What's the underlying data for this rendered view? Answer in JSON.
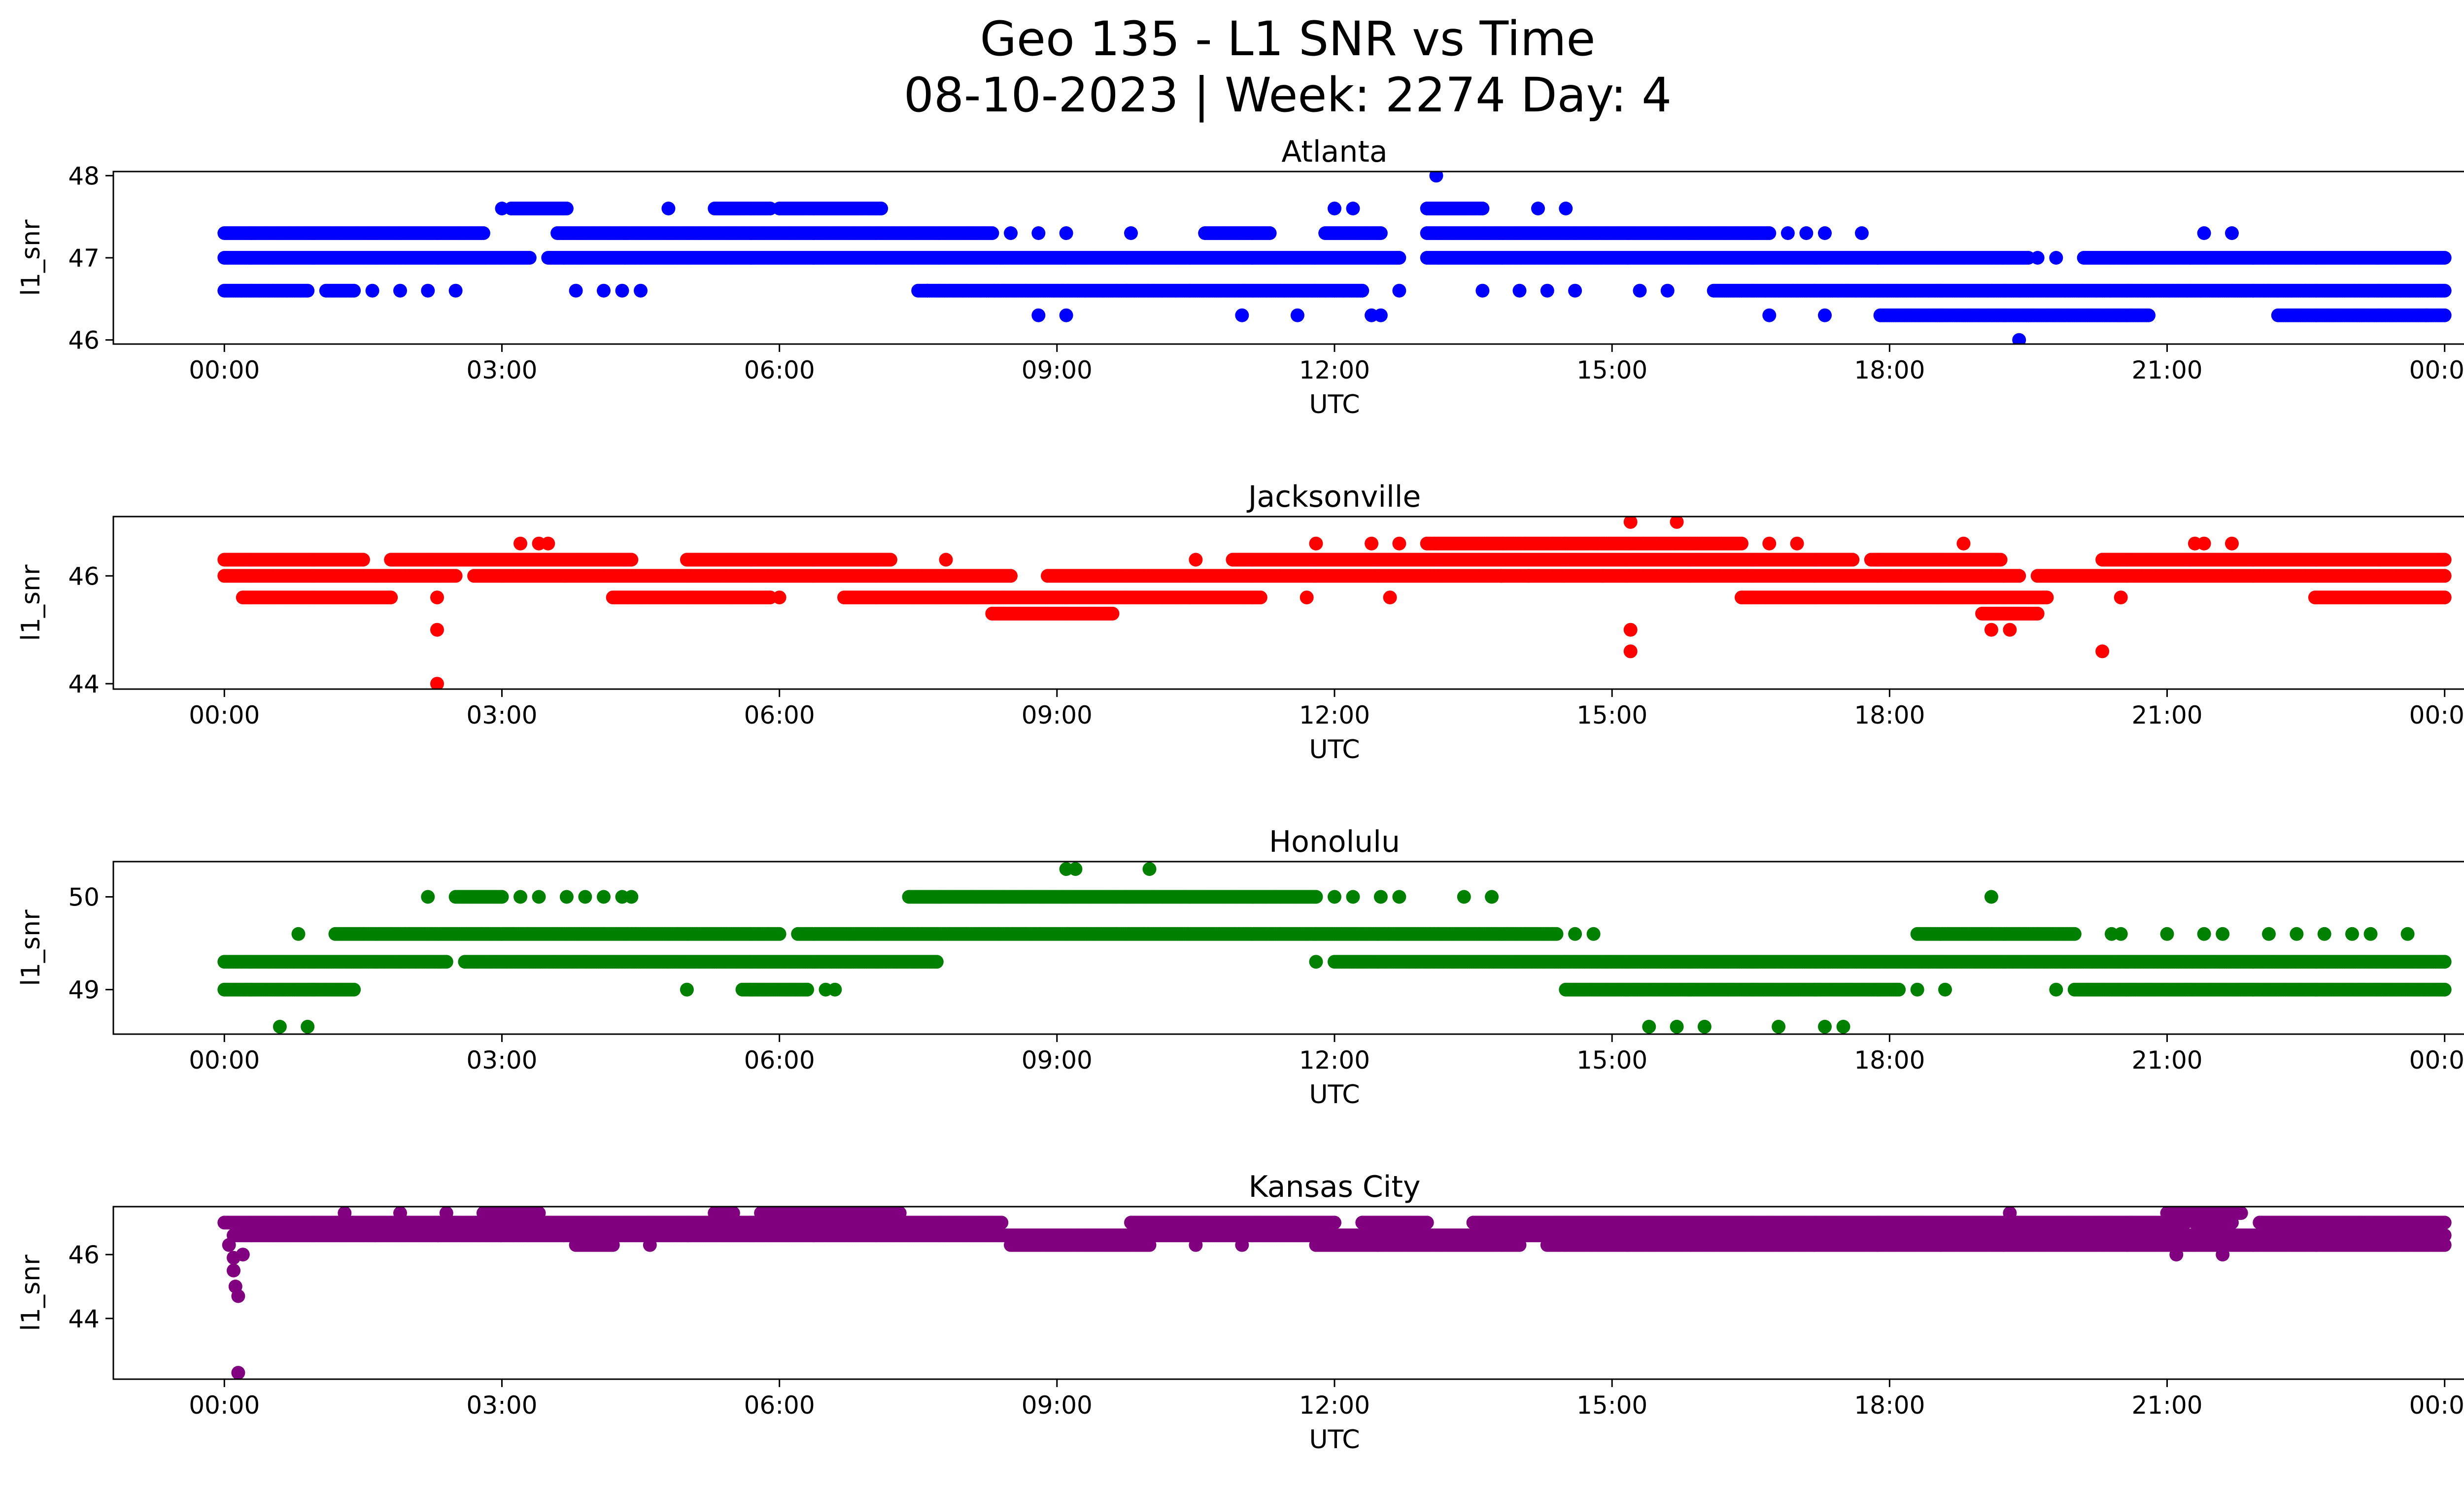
{
  "title_line1": "Geo 135 - L1 SNR vs Time",
  "title_line2": "08-10-2023 | Week: 2274 Day: 4",
  "chart_data": [
    {
      "type": "scatter",
      "title": "Atlanta",
      "xlabel": "UTC",
      "ylabel": "l1_snr",
      "color": "#0000ff",
      "xlim": [
        -1.2,
        25.2
      ],
      "ylim": [
        45.95,
        48.05
      ],
      "yticks": [
        46,
        47,
        48
      ],
      "xticks": [
        "00:00",
        "03:00",
        "06:00",
        "09:00",
        "12:00",
        "15:00",
        "18:00",
        "21:00",
        "00:00"
      ],
      "levels": [
        {
          "y": 47.3,
          "ranges": [
            [
              0.0,
              2.8
            ],
            [
              3.6,
              8.3
            ],
            [
              10.6,
              11.3
            ],
            [
              11.9,
              12.5
            ],
            [
              13.0,
              16.7
            ]
          ]
        },
        {
          "y": 47.0,
          "ranges": [
            [
              0.0,
              3.3
            ],
            [
              3.5,
              12.7
            ],
            [
              13.0,
              19.5
            ],
            [
              20.1,
              24.0
            ]
          ]
        },
        {
          "y": 46.6,
          "ranges": [
            [
              0.0,
              0.9
            ],
            [
              1.1,
              1.4
            ],
            [
              7.5,
              12.3
            ],
            [
              16.1,
              24.0
            ]
          ]
        },
        {
          "y": 46.3,
          "ranges": [
            [
              17.9,
              20.8
            ],
            [
              22.2,
              24.0
            ]
          ]
        },
        {
          "y": 47.6,
          "ranges": [
            [
              3.1,
              3.7
            ],
            [
              5.3,
              5.9
            ],
            [
              6.0,
              7.1
            ],
            [
              13.0,
              13.6
            ]
          ]
        }
      ],
      "points": [
        [
          0.3,
          47.3
        ],
        [
          3.0,
          47.6
        ],
        [
          4.8,
          47.6
        ],
        [
          8.5,
          47.3
        ],
        [
          8.8,
          47.3
        ],
        [
          9.1,
          47.3
        ],
        [
          9.8,
          47.3
        ],
        [
          12.0,
          47.6
        ],
        [
          12.2,
          47.6
        ],
        [
          14.2,
          47.6
        ],
        [
          14.5,
          47.6
        ],
        [
          16.9,
          47.3
        ],
        [
          17.1,
          47.3
        ],
        [
          17.3,
          47.3
        ],
        [
          17.7,
          47.3
        ],
        [
          19.6,
          47.0
        ],
        [
          19.8,
          47.0
        ],
        [
          1.6,
          46.6
        ],
        [
          1.9,
          46.6
        ],
        [
          2.2,
          46.6
        ],
        [
          2.5,
          46.6
        ],
        [
          3.8,
          46.6
        ],
        [
          4.1,
          46.6
        ],
        [
          4.3,
          46.6
        ],
        [
          4.5,
          46.6
        ],
        [
          7.6,
          46.6
        ],
        [
          12.7,
          46.6
        ],
        [
          13.6,
          46.6
        ],
        [
          14.0,
          46.6
        ],
        [
          14.3,
          46.6
        ],
        [
          14.6,
          46.6
        ],
        [
          15.3,
          46.6
        ],
        [
          15.6,
          46.6
        ],
        [
          16.7,
          46.3
        ],
        [
          17.3,
          46.3
        ],
        [
          8.8,
          46.3
        ],
        [
          9.1,
          46.3
        ],
        [
          11.0,
          46.3
        ],
        [
          11.6,
          46.3
        ],
        [
          12.4,
          46.3
        ],
        [
          12.5,
          46.3
        ],
        [
          23.8,
          46.3
        ],
        [
          21.4,
          47.3
        ],
        [
          21.7,
          47.3
        ],
        [
          13.1,
          48.0
        ],
        [
          19.4,
          46.0
        ]
      ]
    },
    {
      "type": "scatter",
      "title": "Jacksonville",
      "xlabel": "UTC",
      "ylabel": "l1_snr",
      "color": "#ff0000",
      "xlim": [
        -1.2,
        25.2
      ],
      "ylim": [
        43.9,
        47.1
      ],
      "yticks": [
        44,
        46
      ],
      "xticks": [
        "00:00",
        "03:00",
        "06:00",
        "09:00",
        "12:00",
        "15:00",
        "18:00",
        "21:00",
        "00:00"
      ],
      "levels": [
        {
          "y": 46.3,
          "ranges": [
            [
              0.0,
              1.5
            ],
            [
              1.8,
              4.4
            ],
            [
              5.0,
              7.2
            ],
            [
              10.9,
              17.6
            ],
            [
              17.8,
              19.2
            ],
            [
              20.3,
              24.0
            ]
          ]
        },
        {
          "y": 46.0,
          "ranges": [
            [
              0.0,
              2.5
            ],
            [
              2.7,
              8.5
            ],
            [
              8.9,
              19.4
            ],
            [
              19.6,
              24.0
            ]
          ]
        },
        {
          "y": 45.6,
          "ranges": [
            [
              0.2,
              1.8
            ],
            [
              4.2,
              5.9
            ],
            [
              6.7,
              11.2
            ],
            [
              16.4,
              19.7
            ],
            [
              22.6,
              24.0
            ]
          ]
        },
        {
          "y": 45.3,
          "ranges": [
            [
              8.3,
              9.6
            ],
            [
              19.0,
              19.6
            ]
          ]
        },
        {
          "y": 46.6,
          "ranges": [
            [
              13.0,
              16.4
            ]
          ]
        }
      ],
      "points": [
        [
          3.2,
          46.6
        ],
        [
          3.4,
          46.6
        ],
        [
          3.5,
          46.6
        ],
        [
          11.8,
          46.6
        ],
        [
          12.4,
          46.6
        ],
        [
          12.7,
          46.6
        ],
        [
          16.7,
          46.6
        ],
        [
          17.0,
          46.6
        ],
        [
          18.8,
          46.6
        ],
        [
          21.3,
          46.6
        ],
        [
          21.4,
          46.6
        ],
        [
          21.7,
          46.6
        ],
        [
          2.3,
          45.0
        ],
        [
          2.3,
          44.0
        ],
        [
          7.8,
          46.3
        ],
        [
          10.5,
          46.3
        ],
        [
          11.7,
          45.6
        ],
        [
          12.6,
          45.6
        ],
        [
          20.5,
          45.6
        ],
        [
          6.0,
          45.6
        ],
        [
          2.3,
          45.6
        ],
        [
          13.8,
          46.0
        ],
        [
          14.1,
          46.0
        ],
        [
          14.9,
          46.0
        ],
        [
          15.2,
          45.0
        ],
        [
          15.2,
          44.6
        ],
        [
          15.2,
          47.0
        ],
        [
          15.7,
          47.0
        ],
        [
          19.1,
          45.0
        ],
        [
          19.3,
          45.0
        ],
        [
          20.3,
          44.6
        ],
        [
          8.3,
          45.3
        ]
      ]
    },
    {
      "type": "scatter",
      "title": "Honolulu",
      "xlabel": "UTC",
      "ylabel": "l1_snr",
      "color": "#008000",
      "xlim": [
        -1.2,
        25.2
      ],
      "ylim": [
        48.52,
        50.38
      ],
      "yticks": [
        49,
        50
      ],
      "xticks": [
        "00:00",
        "03:00",
        "06:00",
        "09:00",
        "12:00",
        "15:00",
        "18:00",
        "21:00",
        "00:00"
      ],
      "levels": [
        {
          "y": 49.3,
          "ranges": [
            [
              0.0,
              2.4
            ],
            [
              2.6,
              7.7
            ],
            [
              12.0,
              24.0
            ]
          ]
        },
        {
          "y": 49.0,
          "ranges": [
            [
              0.0,
              1.4
            ],
            [
              5.6,
              6.3
            ],
            [
              14.5,
              18.1
            ],
            [
              20.0,
              24.0
            ]
          ]
        },
        {
          "y": 49.6,
          "ranges": [
            [
              1.2,
              6.0
            ],
            [
              6.2,
              14.4
            ],
            [
              18.3,
              20.0
            ]
          ]
        },
        {
          "y": 50.0,
          "ranges": [
            [
              2.5,
              3.0
            ],
            [
              7.4,
              11.8
            ]
          ]
        }
      ],
      "points": [
        [
          0.6,
          48.6
        ],
        [
          0.9,
          48.6
        ],
        [
          0.8,
          49.6
        ],
        [
          2.2,
          50.0
        ],
        [
          3.2,
          50.0
        ],
        [
          3.4,
          50.0
        ],
        [
          3.7,
          50.0
        ],
        [
          3.9,
          50.0
        ],
        [
          4.1,
          50.0
        ],
        [
          4.3,
          50.0
        ],
        [
          4.4,
          50.0
        ],
        [
          12.0,
          50.0
        ],
        [
          12.2,
          50.0
        ],
        [
          12.5,
          50.0
        ],
        [
          12.7,
          50.0
        ],
        [
          13.4,
          50.0
        ],
        [
          13.7,
          50.0
        ],
        [
          9.1,
          50.3
        ],
        [
          9.2,
          50.3
        ],
        [
          10.0,
          50.3
        ],
        [
          5.0,
          49.0
        ],
        [
          6.5,
          49.0
        ],
        [
          6.6,
          49.0
        ],
        [
          11.8,
          49.3
        ],
        [
          14.6,
          49.6
        ],
        [
          14.8,
          49.6
        ],
        [
          15.4,
          48.6
        ],
        [
          15.7,
          48.6
        ],
        [
          16.0,
          48.6
        ],
        [
          16.8,
          48.6
        ],
        [
          17.3,
          48.6
        ],
        [
          17.5,
          48.6
        ],
        [
          18.3,
          49.0
        ],
        [
          18.6,
          49.0
        ],
        [
          19.1,
          50.0
        ],
        [
          19.8,
          49.0
        ],
        [
          20.4,
          49.6
        ],
        [
          20.5,
          49.6
        ],
        [
          21.0,
          49.6
        ],
        [
          21.4,
          49.6
        ],
        [
          21.6,
          49.6
        ],
        [
          22.1,
          49.6
        ],
        [
          22.4,
          49.6
        ],
        [
          22.7,
          49.6
        ],
        [
          23.0,
          49.6
        ],
        [
          23.2,
          49.6
        ],
        [
          23.6,
          49.6
        ]
      ]
    },
    {
      "type": "scatter",
      "title": "Kansas City",
      "xlabel": "UTC",
      "ylabel": "l1_snr",
      "color": "#800080",
      "xlim": [
        -1.2,
        25.2
      ],
      "ylim": [
        42.1,
        47.5
      ],
      "yticks": [
        44,
        46
      ],
      "xticks": [
        "00:00",
        "03:00",
        "06:00",
        "09:00",
        "12:00",
        "15:00",
        "18:00",
        "21:00",
        "00:00"
      ],
      "levels": [
        {
          "y": 47.0,
          "ranges": [
            [
              0.0,
              8.4
            ],
            [
              9.8,
              12.0
            ],
            [
              12.3,
              13.0
            ],
            [
              13.5,
              21.2
            ],
            [
              21.3,
              21.7
            ],
            [
              22.0,
              24.0
            ]
          ]
        },
        {
          "y": 46.6,
          "ranges": [
            [
              0.1,
              24.0
            ]
          ]
        },
        {
          "y": 46.3,
          "ranges": [
            [
              3.8,
              4.2
            ],
            [
              8.5,
              10.0
            ],
            [
              11.8,
              14.0
            ],
            [
              14.3,
              24.0
            ]
          ]
        },
        {
          "y": 47.3,
          "ranges": [
            [
              2.8,
              3.4
            ],
            [
              5.3,
              5.5
            ],
            [
              5.8,
              7.3
            ],
            [
              21.0,
              21.8
            ]
          ]
        }
      ],
      "points": [
        [
          0.05,
          46.3
        ],
        [
          0.1,
          45.9
        ],
        [
          0.1,
          45.5
        ],
        [
          0.12,
          45.0
        ],
        [
          0.15,
          44.7
        ],
        [
          0.15,
          42.3
        ],
        [
          0.2,
          46.0
        ],
        [
          1.3,
          47.3
        ],
        [
          1.9,
          47.3
        ],
        [
          2.4,
          47.3
        ],
        [
          4.6,
          46.3
        ],
        [
          10.5,
          46.3
        ],
        [
          11.0,
          46.3
        ],
        [
          21.1,
          46.0
        ],
        [
          21.6,
          46.0
        ],
        [
          23.1,
          47.0
        ],
        [
          19.3,
          47.3
        ]
      ]
    }
  ]
}
